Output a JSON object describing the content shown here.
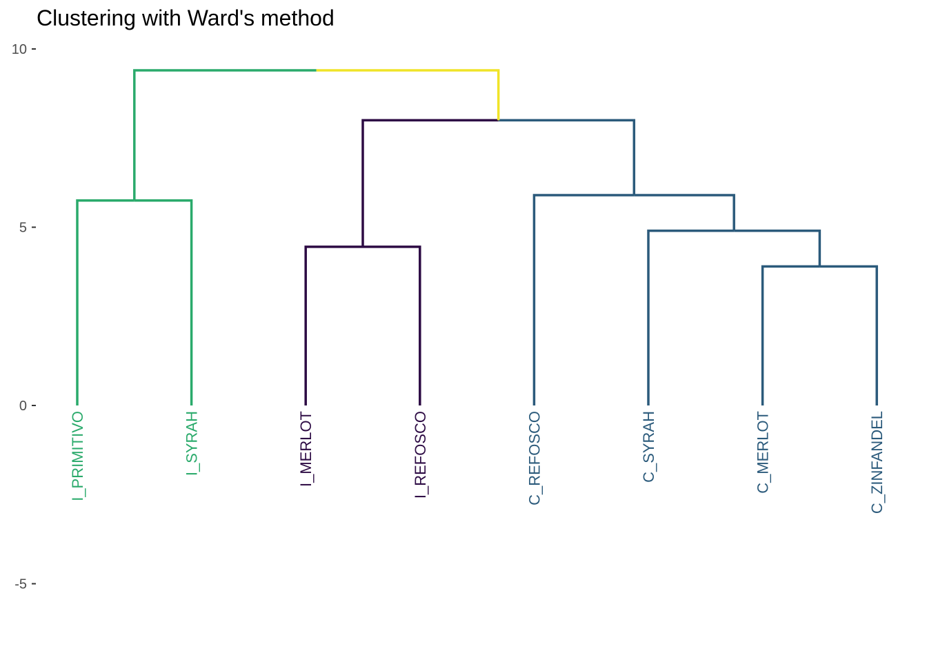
{
  "chart_data": {
    "type": "dendrogram",
    "title": "Clustering with Ward's method",
    "xlabel": "",
    "ylabel": "",
    "ylim": [
      -6.2,
      10
    ],
    "yticks": [
      -5,
      0,
      5,
      10
    ],
    "ytick_labels": [
      "-5",
      "0",
      "5",
      "10"
    ],
    "grid": false,
    "leaves": [
      {
        "label": "I_PRIMITIVO",
        "cluster": 3
      },
      {
        "label": "I_SYRAH",
        "cluster": 3
      },
      {
        "label": "I_MERLOT",
        "cluster": 1
      },
      {
        "label": "I_REFOSCO",
        "cluster": 1
      },
      {
        "label": "C_REFOSCO",
        "cluster": 2
      },
      {
        "label": "C_SYRAH",
        "cluster": 2
      },
      {
        "label": "C_MERLOT",
        "cluster": 2
      },
      {
        "label": "C_ZINFANDEL",
        "cluster": 2
      }
    ],
    "merges": [
      {
        "left": "leaf:6",
        "right": "leaf:7",
        "height": 3.9,
        "cluster": 2
      },
      {
        "left": "leaf:5",
        "right": "node:0",
        "height": 4.9,
        "cluster": 2
      },
      {
        "left": "leaf:4",
        "right": "node:1",
        "height": 5.9,
        "cluster": 2
      },
      {
        "left": "leaf:2",
        "right": "leaf:3",
        "height": 4.45,
        "cluster": 1
      },
      {
        "left": "node:3",
        "right": "node:2",
        "height": 8.0,
        "cluster": 1,
        "cluster_right": 2
      },
      {
        "left": "leaf:0",
        "right": "leaf:1",
        "height": 5.75,
        "cluster": 3
      },
      {
        "left": "node:5",
        "right": "node:4",
        "height": 9.4,
        "cluster": 3,
        "cluster_right": 4
      }
    ],
    "cluster_colors": {
      "1": "#2d0b44",
      "2": "#2b5a7b",
      "3": "#2aaa6b",
      "4": "#f0e428"
    }
  }
}
